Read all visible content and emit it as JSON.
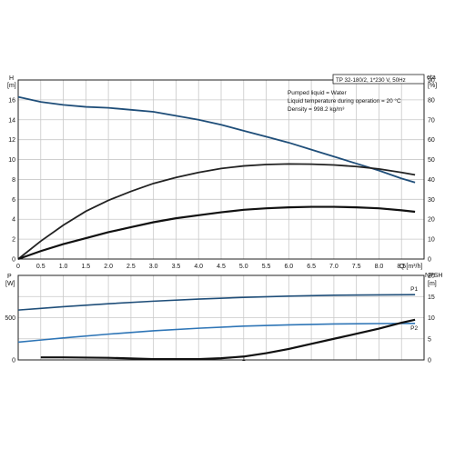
{
  "chart_data": [
    {
      "type": "line",
      "title": "TP 32-180/2, 1*230 V, 50Hz",
      "annotations": [
        "Pumped liquid = Water",
        "Liquid temperature during operation = 20 °C",
        "Density = 998.2 kg/m³"
      ],
      "xlabel": "Q [m³/h]",
      "x_ticks": [
        "0",
        "0.5",
        "1.0",
        "1.5",
        "2.0",
        "2.5",
        "3.0",
        "3.5",
        "4.0",
        "4.5",
        "5.0",
        "5.5",
        "6.0",
        "6.5",
        "7.0",
        "7.5",
        "8.0",
        "8.5"
      ],
      "xlim": [
        0,
        9.0
      ],
      "y_left_label_top": "H",
      "y_left_label_unit": "[m]",
      "y_left_ticks": [
        "0",
        "2",
        "4",
        "6",
        "8",
        "10",
        "12",
        "14",
        "16"
      ],
      "ylim_left": [
        0,
        18
      ],
      "y_right_label_top": "eta",
      "y_right_label_unit": "[%]",
      "y_right_ticks": [
        "0",
        "10",
        "20",
        "30",
        "40",
        "50",
        "60",
        "70",
        "80",
        "90"
      ],
      "ylim_right": [
        0,
        90
      ],
      "grid": true,
      "series": [
        {
          "axis": "left",
          "color": "#1f4e79",
          "x": [
            0,
            0.5,
            1.0,
            1.5,
            2.0,
            2.5,
            3.0,
            3.5,
            4.0,
            4.5,
            5.0,
            5.5,
            6.0,
            6.5,
            7.0,
            7.5,
            8.0,
            8.5,
            8.8
          ],
          "values": [
            16.3,
            15.8,
            15.5,
            15.3,
            15.2,
            15.0,
            14.8,
            14.4,
            14.0,
            13.5,
            12.9,
            12.3,
            11.7,
            11.0,
            10.3,
            9.6,
            8.9,
            8.1,
            7.7
          ]
        },
        {
          "axis": "right",
          "color": "#222222",
          "x": [
            0,
            0.5,
            1.0,
            1.5,
            2.0,
            2.5,
            3.0,
            3.5,
            4.0,
            4.5,
            5.0,
            5.5,
            6.0,
            6.5,
            7.0,
            7.5,
            8.0,
            8.5,
            8.8
          ],
          "values": [
            0,
            9,
            17,
            24,
            29.5,
            34,
            38,
            41,
            43.5,
            45.5,
            46.8,
            47.5,
            47.8,
            47.7,
            47.3,
            46.5,
            45.3,
            43.5,
            42.3
          ]
        },
        {
          "axis": "left",
          "color": "#111111",
          "x": [
            0,
            0.5,
            1.0,
            1.5,
            2.0,
            2.5,
            3.0,
            3.5,
            4.0,
            4.5,
            5.0,
            5.5,
            6.0,
            6.5,
            7.0,
            7.5,
            8.0,
            8.5,
            8.8
          ],
          "values": [
            0,
            0.8,
            1.5,
            2.1,
            2.7,
            3.2,
            3.7,
            4.1,
            4.4,
            4.7,
            4.95,
            5.1,
            5.2,
            5.25,
            5.25,
            5.2,
            5.1,
            4.9,
            4.75
          ]
        }
      ]
    },
    {
      "type": "line",
      "y_left_label_top": "P",
      "y_left_label_unit": "[W]",
      "y_left_ticks": [
        "0",
        "500"
      ],
      "ylim_left": [
        0,
        1000
      ],
      "y_right_label_top": "NPSH",
      "y_right_label_unit": "[m]",
      "y_right_ticks": [
        "0",
        "5",
        "10",
        "15",
        "20"
      ],
      "ylim_right": [
        0,
        20
      ],
      "inner_tick_label": "1",
      "grid": true,
      "series": [
        {
          "name": "P1",
          "axis": "left",
          "color": "#1f4e79",
          "x": [
            0,
            0.5,
            1.0,
            2.0,
            3.0,
            4.0,
            5.0,
            6.0,
            7.0,
            8.0,
            8.8
          ],
          "values": [
            590,
            610,
            630,
            665,
            695,
            720,
            740,
            755,
            765,
            770,
            772
          ]
        },
        {
          "name": "P2",
          "axis": "left",
          "color": "#2e75b6",
          "x": [
            0,
            0.5,
            1.0,
            2.0,
            3.0,
            4.0,
            5.0,
            6.0,
            7.0,
            8.0,
            8.8
          ],
          "values": [
            210,
            235,
            260,
            305,
            345,
            375,
            400,
            415,
            425,
            430,
            432
          ]
        },
        {
          "axis": "right",
          "color": "#111111",
          "x": [
            0.5,
            1.0,
            2.0,
            3.0,
            4.0,
            4.5,
            5.0,
            5.5,
            6.0,
            6.5,
            7.0,
            7.5,
            8.0,
            8.5,
            8.8
          ],
          "values": [
            0.6,
            0.6,
            0.5,
            0.2,
            0.2,
            0.4,
            0.8,
            1.6,
            2.6,
            3.8,
            5.0,
            6.2,
            7.4,
            8.8,
            9.5
          ]
        }
      ]
    }
  ]
}
